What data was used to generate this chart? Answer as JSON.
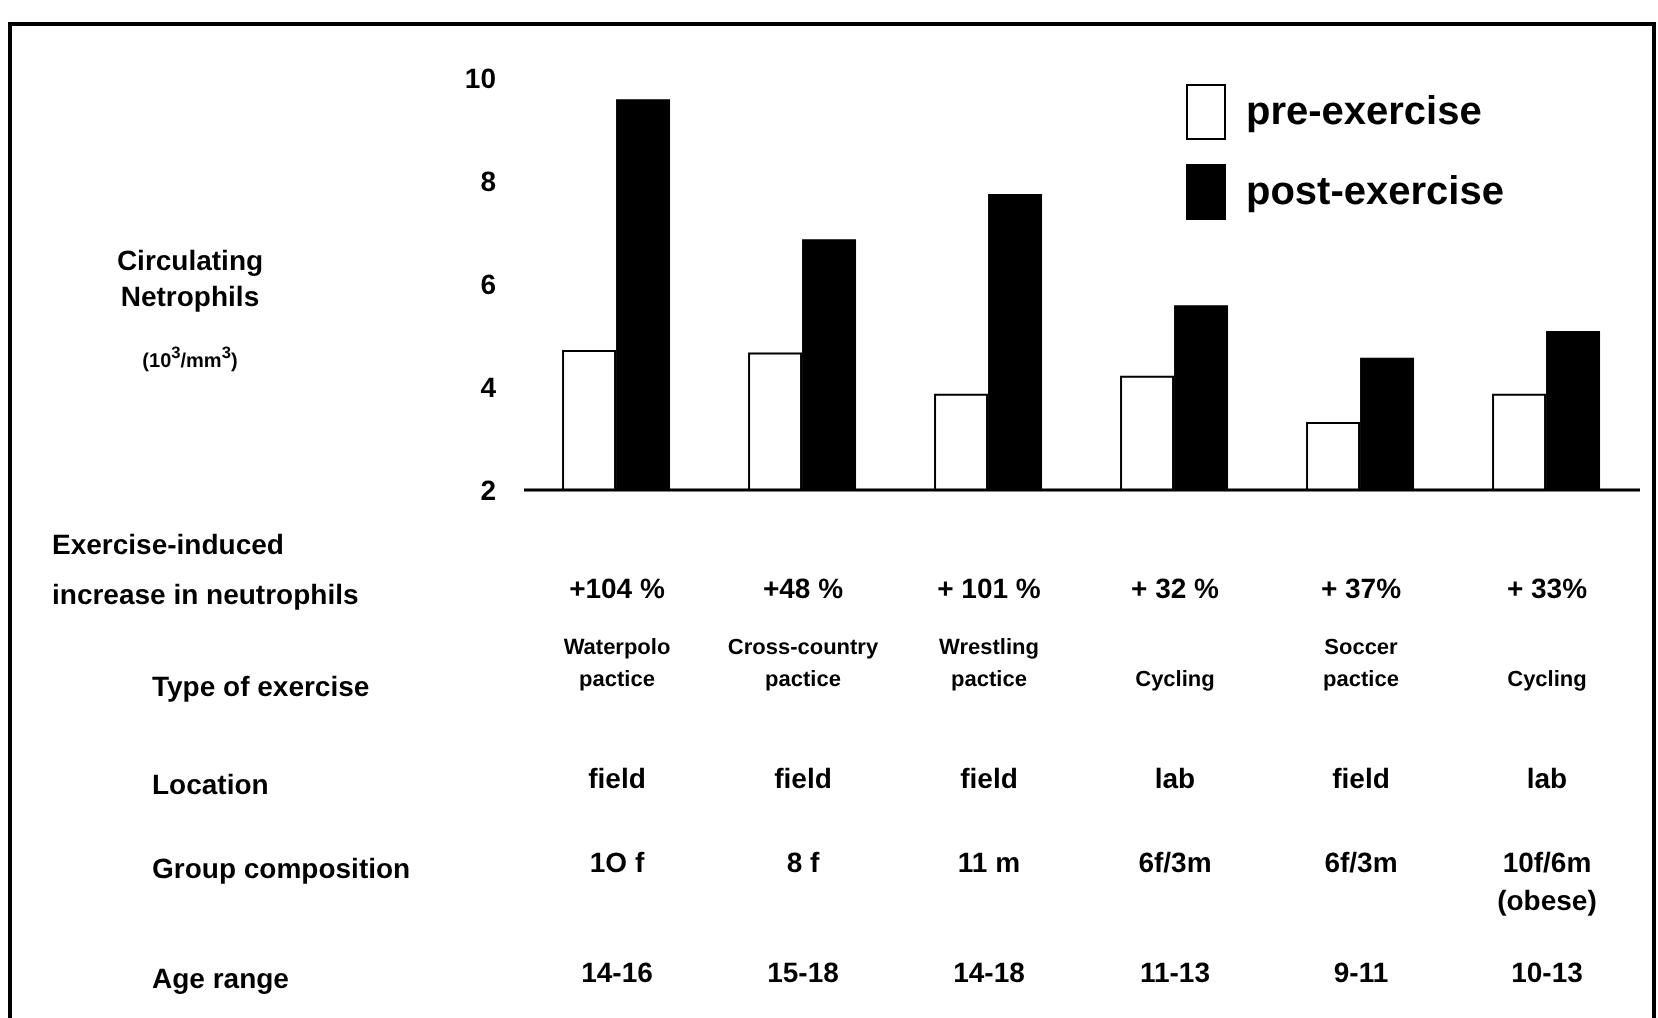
{
  "chart_data": {
    "type": "bar",
    "ylabel": "Circulating\nNetrophils\n(10$^{3}$/mm$^{3}$)",
    "categories": [
      null,
      null,
      null,
      null,
      null,
      null
    ],
    "series": [
      {
        "name": "pre-exercise",
        "color": "#ffffff",
        "values": [
          4.7,
          4.65,
          3.85,
          4.2,
          3.3,
          3.85
        ]
      },
      {
        "name": "post-exercise",
        "color": "#000000",
        "values": [
          9.57,
          6.85,
          7.73,
          5.57,
          4.55,
          5.07
        ]
      }
    ],
    "ylim": [
      2,
      10
    ],
    "yticks": [
      2,
      4,
      6,
      8,
      10
    ],
    "tick_labels": "y",
    "grid": false,
    "legend": "top right",
    "annotations": [
      "Exercise-induced\nincrease in neutrophils",
      "+104 %",
      "+48 %",
      "+ 101 %",
      "+ 32 %",
      "+ 37%",
      "+ 33%",
      "Type of exercise",
      "Waterpolo\npactice",
      "Cross-country\npactice",
      "Wrestling\npactice",
      "Cycling",
      "Soccer\npactice",
      "Cycling",
      "Location",
      "field",
      "field",
      "field",
      "lab",
      "field",
      "lab",
      "Group composition",
      "1O f",
      "8 f",
      "11 m",
      "6f/3m",
      "6f/3m",
      "10f/6m\n(obese)",
      "Age range",
      "14-16",
      "15-18",
      "14-18",
      "11-13",
      "9-11",
      "10-13"
    ]
  }
}
